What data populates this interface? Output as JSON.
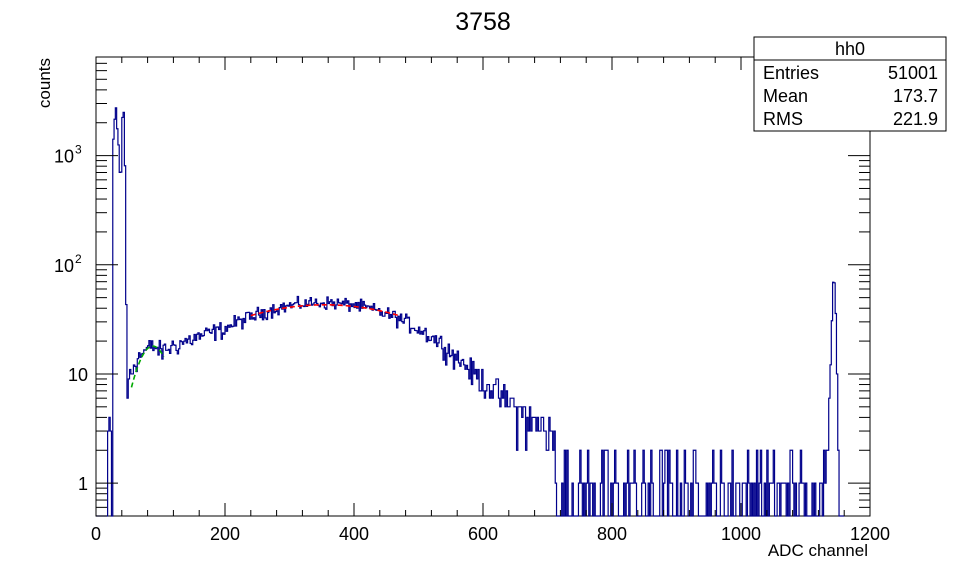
{
  "chart_data": {
    "type": "histogram",
    "title": "3758",
    "xlabel": "ADC channel",
    "ylabel": "counts",
    "x_scale": "linear",
    "y_scale": "log",
    "xlim": [
      0,
      1200
    ],
    "ylim": [
      0.5,
      8000
    ],
    "x_ticks": [
      {
        "value": 0,
        "label": "0"
      },
      {
        "value": 200,
        "label": "200"
      },
      {
        "value": 400,
        "label": "400"
      },
      {
        "value": 600,
        "label": "600"
      },
      {
        "value": 800,
        "label": "800"
      },
      {
        "value": 1000,
        "label": "1000"
      },
      {
        "value": 1200,
        "label": "1200"
      }
    ],
    "y_ticks": [
      {
        "value": 1,
        "base": "1",
        "exp": ""
      },
      {
        "value": 10,
        "base": "10",
        "exp": ""
      },
      {
        "value": 100,
        "base": "10",
        "exp": "2"
      },
      {
        "value": 1000,
        "base": "10",
        "exp": "3"
      }
    ],
    "grid": false,
    "series": [
      {
        "color": "#00008b",
        "kind": "step",
        "bin_width": 2,
        "points": [
          [
            0,
            0
          ],
          [
            18,
            0
          ],
          [
            20,
            6
          ],
          [
            22,
            0
          ],
          [
            23,
            3
          ],
          [
            25,
            0
          ],
          [
            26,
            2000
          ],
          [
            28,
            800
          ],
          [
            30,
            3500
          ],
          [
            32,
            2000
          ],
          [
            34,
            1500
          ],
          [
            36,
            1000
          ],
          [
            38,
            400
          ],
          [
            40,
            1000
          ],
          [
            42,
            3500
          ],
          [
            44,
            1500
          ],
          [
            46,
            80
          ],
          [
            48,
            6
          ],
          [
            50,
            5
          ],
          [
            52,
            12
          ],
          [
            55,
            10
          ],
          [
            60,
            13
          ],
          [
            70,
            15
          ],
          [
            80,
            17
          ],
          [
            90,
            18
          ],
          [
            100,
            16
          ],
          [
            120,
            18
          ],
          [
            140,
            20
          ],
          [
            160,
            22
          ],
          [
            180,
            24
          ],
          [
            200,
            26
          ],
          [
            220,
            30
          ],
          [
            240,
            33
          ],
          [
            260,
            37
          ],
          [
            280,
            40
          ],
          [
            300,
            42
          ],
          [
            320,
            44
          ],
          [
            340,
            45
          ],
          [
            360,
            45
          ],
          [
            380,
            44
          ],
          [
            400,
            43
          ],
          [
            420,
            40
          ],
          [
            440,
            37
          ],
          [
            460,
            34
          ],
          [
            480,
            30
          ],
          [
            500,
            26
          ],
          [
            520,
            22
          ],
          [
            540,
            18
          ],
          [
            560,
            14
          ],
          [
            580,
            11
          ],
          [
            600,
            8.5
          ],
          [
            620,
            7
          ],
          [
            640,
            5.5
          ],
          [
            660,
            4.3
          ],
          [
            680,
            3.4
          ],
          [
            700,
            2.8
          ],
          [
            720,
            2.3
          ],
          [
            740,
            2
          ],
          [
            760,
            1.8
          ],
          [
            780,
            1.6
          ],
          [
            800,
            1.5
          ],
          [
            820,
            1.4
          ],
          [
            840,
            1.3
          ],
          [
            860,
            1.3
          ],
          [
            880,
            1.2
          ],
          [
            900,
            1.2
          ],
          [
            920,
            1.2
          ],
          [
            940,
            1.1
          ],
          [
            960,
            1.1
          ],
          [
            980,
            1.1
          ],
          [
            1000,
            1.1
          ],
          [
            1020,
            1.1
          ],
          [
            1040,
            1.1
          ],
          [
            1060,
            1.1
          ],
          [
            1080,
            1.1
          ],
          [
            1100,
            1.1
          ],
          [
            1120,
            1.2
          ],
          [
            1130,
            1.5
          ],
          [
            1136,
            4
          ],
          [
            1140,
            15
          ],
          [
            1142,
            50
          ],
          [
            1144,
            80
          ],
          [
            1146,
            60
          ],
          [
            1148,
            20
          ],
          [
            1150,
            3
          ],
          [
            1152,
            0
          ],
          [
            1200,
            0
          ]
        ]
      }
    ],
    "fits": [
      {
        "color": "#00aa00",
        "x_range": [
          55,
          105
        ],
        "peak_x": 88,
        "peak_y": 18,
        "sigma": 25
      },
      {
        "color": "#ff0000",
        "x_range": [
          240,
          470
        ],
        "peak_x": 355,
        "peak_y": 43,
        "sigma": 170
      }
    ],
    "stats_box": {
      "name": "hh0",
      "rows": [
        {
          "label": "Entries",
          "value": "51001"
        },
        {
          "label": "Mean",
          "value": "173.7"
        },
        {
          "label": "RMS",
          "value": "221.9"
        }
      ]
    }
  }
}
